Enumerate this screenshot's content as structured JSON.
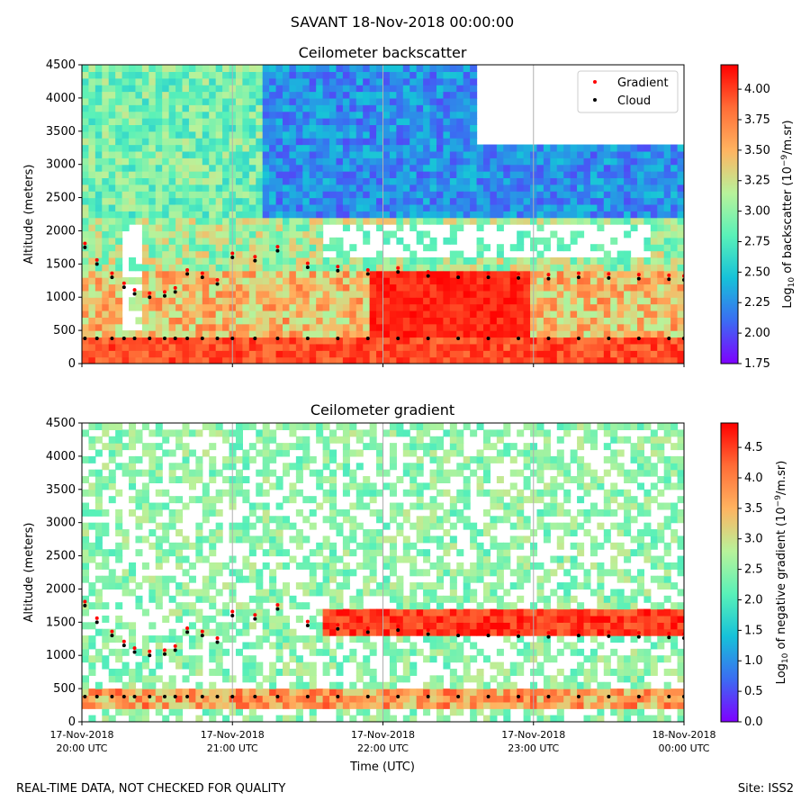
{
  "figure": {
    "title": "SAVANT 18-Nov-2018 00:00:00",
    "footer_left": "REAL-TIME DATA, NOT CHECKED FOR QUALITY",
    "footer_right": "Site: ISS2"
  },
  "colors": {
    "gradient_marker": "#ff0000",
    "cloud_marker": "#000000",
    "colormap": "rainbow",
    "colormap_stops": [
      "#7f00ff",
      "#3b6cf2",
      "#16c1d9",
      "#59f1b8",
      "#b8f29a",
      "#ffb360",
      "#ff6c36",
      "#ff0000"
    ]
  },
  "chart_data": [
    {
      "type": "heatmap",
      "title": "Ceilometer backscatter",
      "xlabel": "",
      "ylabel": "Altitude (meters)",
      "ylim": [
        0,
        4500
      ],
      "yticks": [
        0,
        500,
        1000,
        1500,
        2000,
        2500,
        3000,
        3500,
        4000,
        4500
      ],
      "colorbar": {
        "label": "Log10 of backscatter (10^-9/m.sr)",
        "range": [
          1.75,
          4.2
        ],
        "ticks": [
          "1.75",
          "2.00",
          "2.25",
          "2.50",
          "2.75",
          "3.00",
          "3.25",
          "3.50",
          "3.75",
          "4.00"
        ]
      },
      "legend": {
        "position": "top-right",
        "entries": [
          "Gradient",
          "Cloud"
        ]
      }
    },
    {
      "type": "heatmap",
      "title": "Ceilometer gradient",
      "xlabel": "Time (UTC)",
      "ylabel": "Altitude (meters)",
      "ylim": [
        0,
        4500
      ],
      "yticks": [
        0,
        500,
        1000,
        1500,
        2000,
        2500,
        3000,
        3500,
        4000,
        4500
      ],
      "xticks": [
        [
          "17-Nov-2018",
          "20:00 UTC"
        ],
        [
          "17-Nov-2018",
          "21:00 UTC"
        ],
        [
          "17-Nov-2018",
          "22:00 UTC"
        ],
        [
          "17-Nov-2018",
          "23:00 UTC"
        ],
        [
          "18-Nov-2018",
          "00:00 UTC"
        ]
      ],
      "colorbar": {
        "label": "Log10 of negative gradient (10^-9/m.sr)",
        "range": [
          0,
          4.9
        ],
        "ticks": [
          "0.0",
          "0.5",
          "1.0",
          "1.5",
          "2.0",
          "2.5",
          "3.0",
          "3.5",
          "4.0",
          "4.5"
        ]
      }
    }
  ],
  "time_axis": {
    "start": "17-Nov-2018 20:00 UTC",
    "end": "18-Nov-2018 00:00 UTC"
  },
  "cloud_base_series": [
    {
      "name": "Cloud",
      "x_hours": [
        0.02,
        0.1,
        0.2,
        0.28,
        0.35,
        0.45,
        0.55,
        0.62,
        0.7,
        0.8,
        0.9,
        1.0,
        1.15,
        1.3,
        1.5,
        1.7,
        1.9,
        2.1,
        2.3,
        2.5,
        2.7,
        2.9,
        3.1,
        3.3,
        3.5,
        3.7,
        3.9,
        4.0
      ],
      "y_m": [
        1750,
        1500,
        1300,
        1150,
        1050,
        1000,
        1020,
        1080,
        1350,
        1300,
        1200,
        1600,
        1550,
        1700,
        1450,
        1400,
        1350,
        1380,
        1320,
        1300,
        1300,
        1290,
        1280,
        1300,
        1290,
        1280,
        1270,
        1260
      ]
    }
  ]
}
